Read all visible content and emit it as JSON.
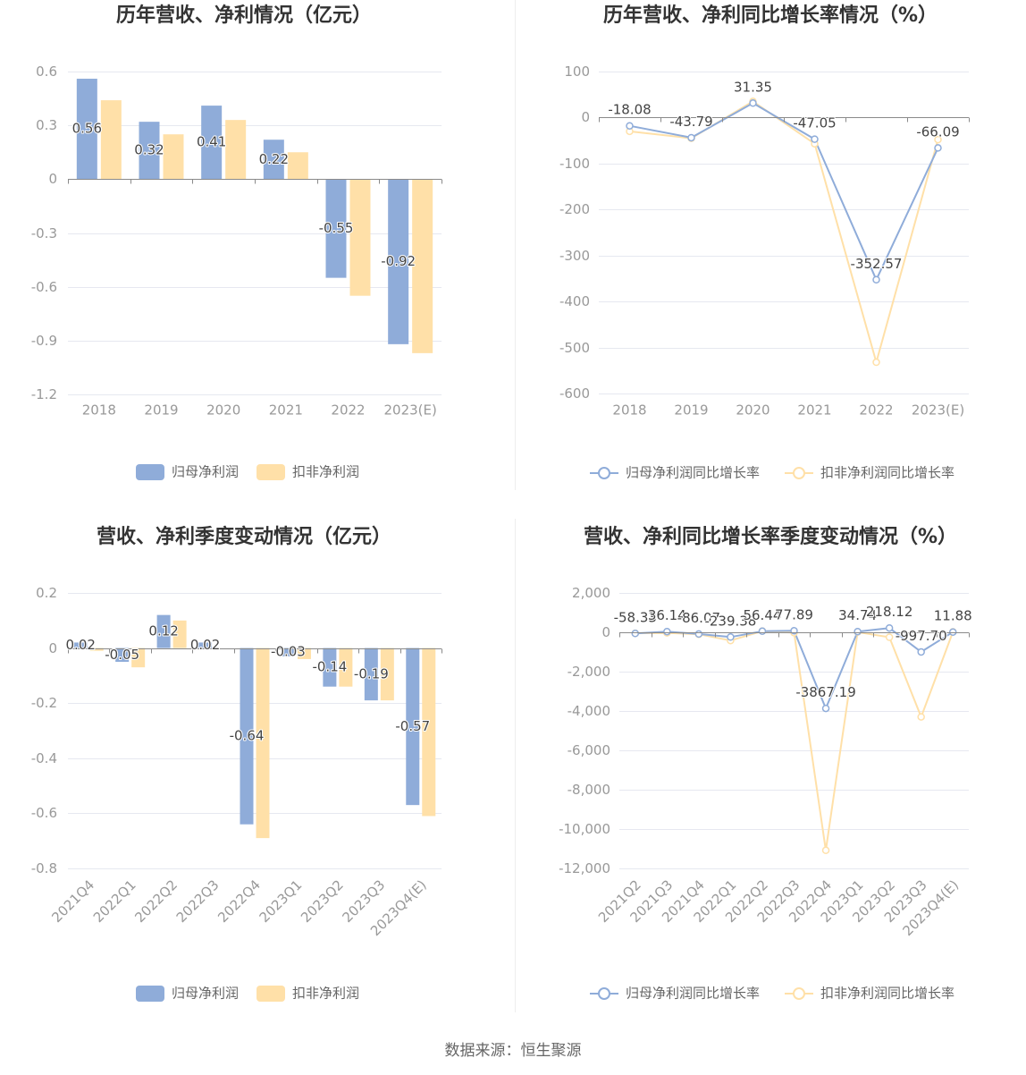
{
  "source": "数据来源：恒生聚源",
  "colors": {
    "series": [
      "#8facd9",
      "#ffe0a8"
    ],
    "grid": "#e6e8f0",
    "axis": "#8a8a8a",
    "divider": "#eeeeee"
  },
  "chart_data": [
    {
      "type": "bar",
      "title": "历年营收、净利情况（亿元）",
      "categories": [
        "2018",
        "2019",
        "2020",
        "2021",
        "2022",
        "2023(E)"
      ],
      "series": [
        {
          "name": "归母净利润",
          "values": [
            0.56,
            0.32,
            0.41,
            0.22,
            -0.55,
            -0.92
          ],
          "data_labels": true
        },
        {
          "name": "扣非净利润",
          "values": [
            0.44,
            0.25,
            0.33,
            0.15,
            -0.65,
            -0.97
          ],
          "data_labels": false
        }
      ],
      "ylim": [
        -1.2,
        0.6
      ],
      "ytick_labels": [
        "0.6",
        "0.3",
        "0",
        "-0.3",
        "-0.6",
        "-0.9",
        "-1.2"
      ],
      "grid": true,
      "legend": "bottom"
    },
    {
      "type": "line",
      "title": "历年营收、净利同比增长率情况（%）",
      "categories": [
        "2018",
        "2019",
        "2020",
        "2021",
        "2022",
        "2023(E)"
      ],
      "series": [
        {
          "name": "归母净利润同比增长率",
          "values": [
            -18.08,
            -43.79,
            31.35,
            -47.05,
            -352.57,
            -66.09
          ],
          "data_labels": true
        },
        {
          "name": "扣非净利润同比增长率",
          "values": [
            -30,
            -45,
            35,
            -57,
            -532,
            -48
          ],
          "data_labels": false
        }
      ],
      "ylim": [
        -600,
        100
      ],
      "ytick_labels": [
        "100",
        "0",
        "-100",
        "-200",
        "-300",
        "-400",
        "-500",
        "-600"
      ],
      "grid": true,
      "legend": "bottom"
    },
    {
      "type": "bar",
      "title": "营收、净利季度变动情况（亿元）",
      "categories": [
        "2021Q4",
        "2022Q1",
        "2022Q2",
        "2022Q3",
        "2022Q4",
        "2023Q1",
        "2023Q2",
        "2023Q3",
        "2023Q4(E)"
      ],
      "series": [
        {
          "name": "归母净利润",
          "values": [
            0.02,
            -0.05,
            0.12,
            0.02,
            -0.64,
            -0.03,
            -0.14,
            -0.19,
            -0.57
          ],
          "data_labels": true
        },
        {
          "name": "扣非净利润",
          "values": [
            -0.01,
            -0.07,
            0.1,
            0.0,
            -0.69,
            -0.04,
            -0.14,
            -0.19,
            -0.61
          ],
          "data_labels": false
        }
      ],
      "ylim": [
        -0.8,
        0.2
      ],
      "ytick_labels": [
        "0.2",
        "0",
        "-0.2",
        "-0.4",
        "-0.6",
        "-0.8"
      ],
      "grid": true,
      "legend": "bottom"
    },
    {
      "type": "line",
      "title": "营收、净利同比增长率季度变动情况（%）",
      "categories": [
        "2021Q2",
        "2021Q3",
        "2021Q4",
        "2022Q1",
        "2022Q2",
        "2022Q3",
        "2022Q4",
        "2023Q1",
        "2023Q2",
        "2023Q3",
        "2023Q4(E)"
      ],
      "series": [
        {
          "name": "归母净利润同比增长率",
          "values": [
            -58.33,
            36.14,
            -86.07,
            -239.38,
            56.44,
            77.89,
            -3867.19,
            34.74,
            218.12,
            -997.7,
            11.88
          ],
          "data_labels": true
        },
        {
          "name": "扣非净利润同比增长率",
          "values": [
            -50,
            -30,
            -100,
            -420,
            60,
            -20,
            -11080,
            10,
            -250,
            -4300,
            20
          ],
          "data_labels": false
        }
      ],
      "ylim": [
        -12000,
        2000
      ],
      "ytick_labels": [
        "2,000",
        "0",
        "-2,000",
        "-4,000",
        "-6,000",
        "-8,000",
        "-10,000",
        "-12,000"
      ],
      "grid": true,
      "legend": "bottom"
    }
  ]
}
